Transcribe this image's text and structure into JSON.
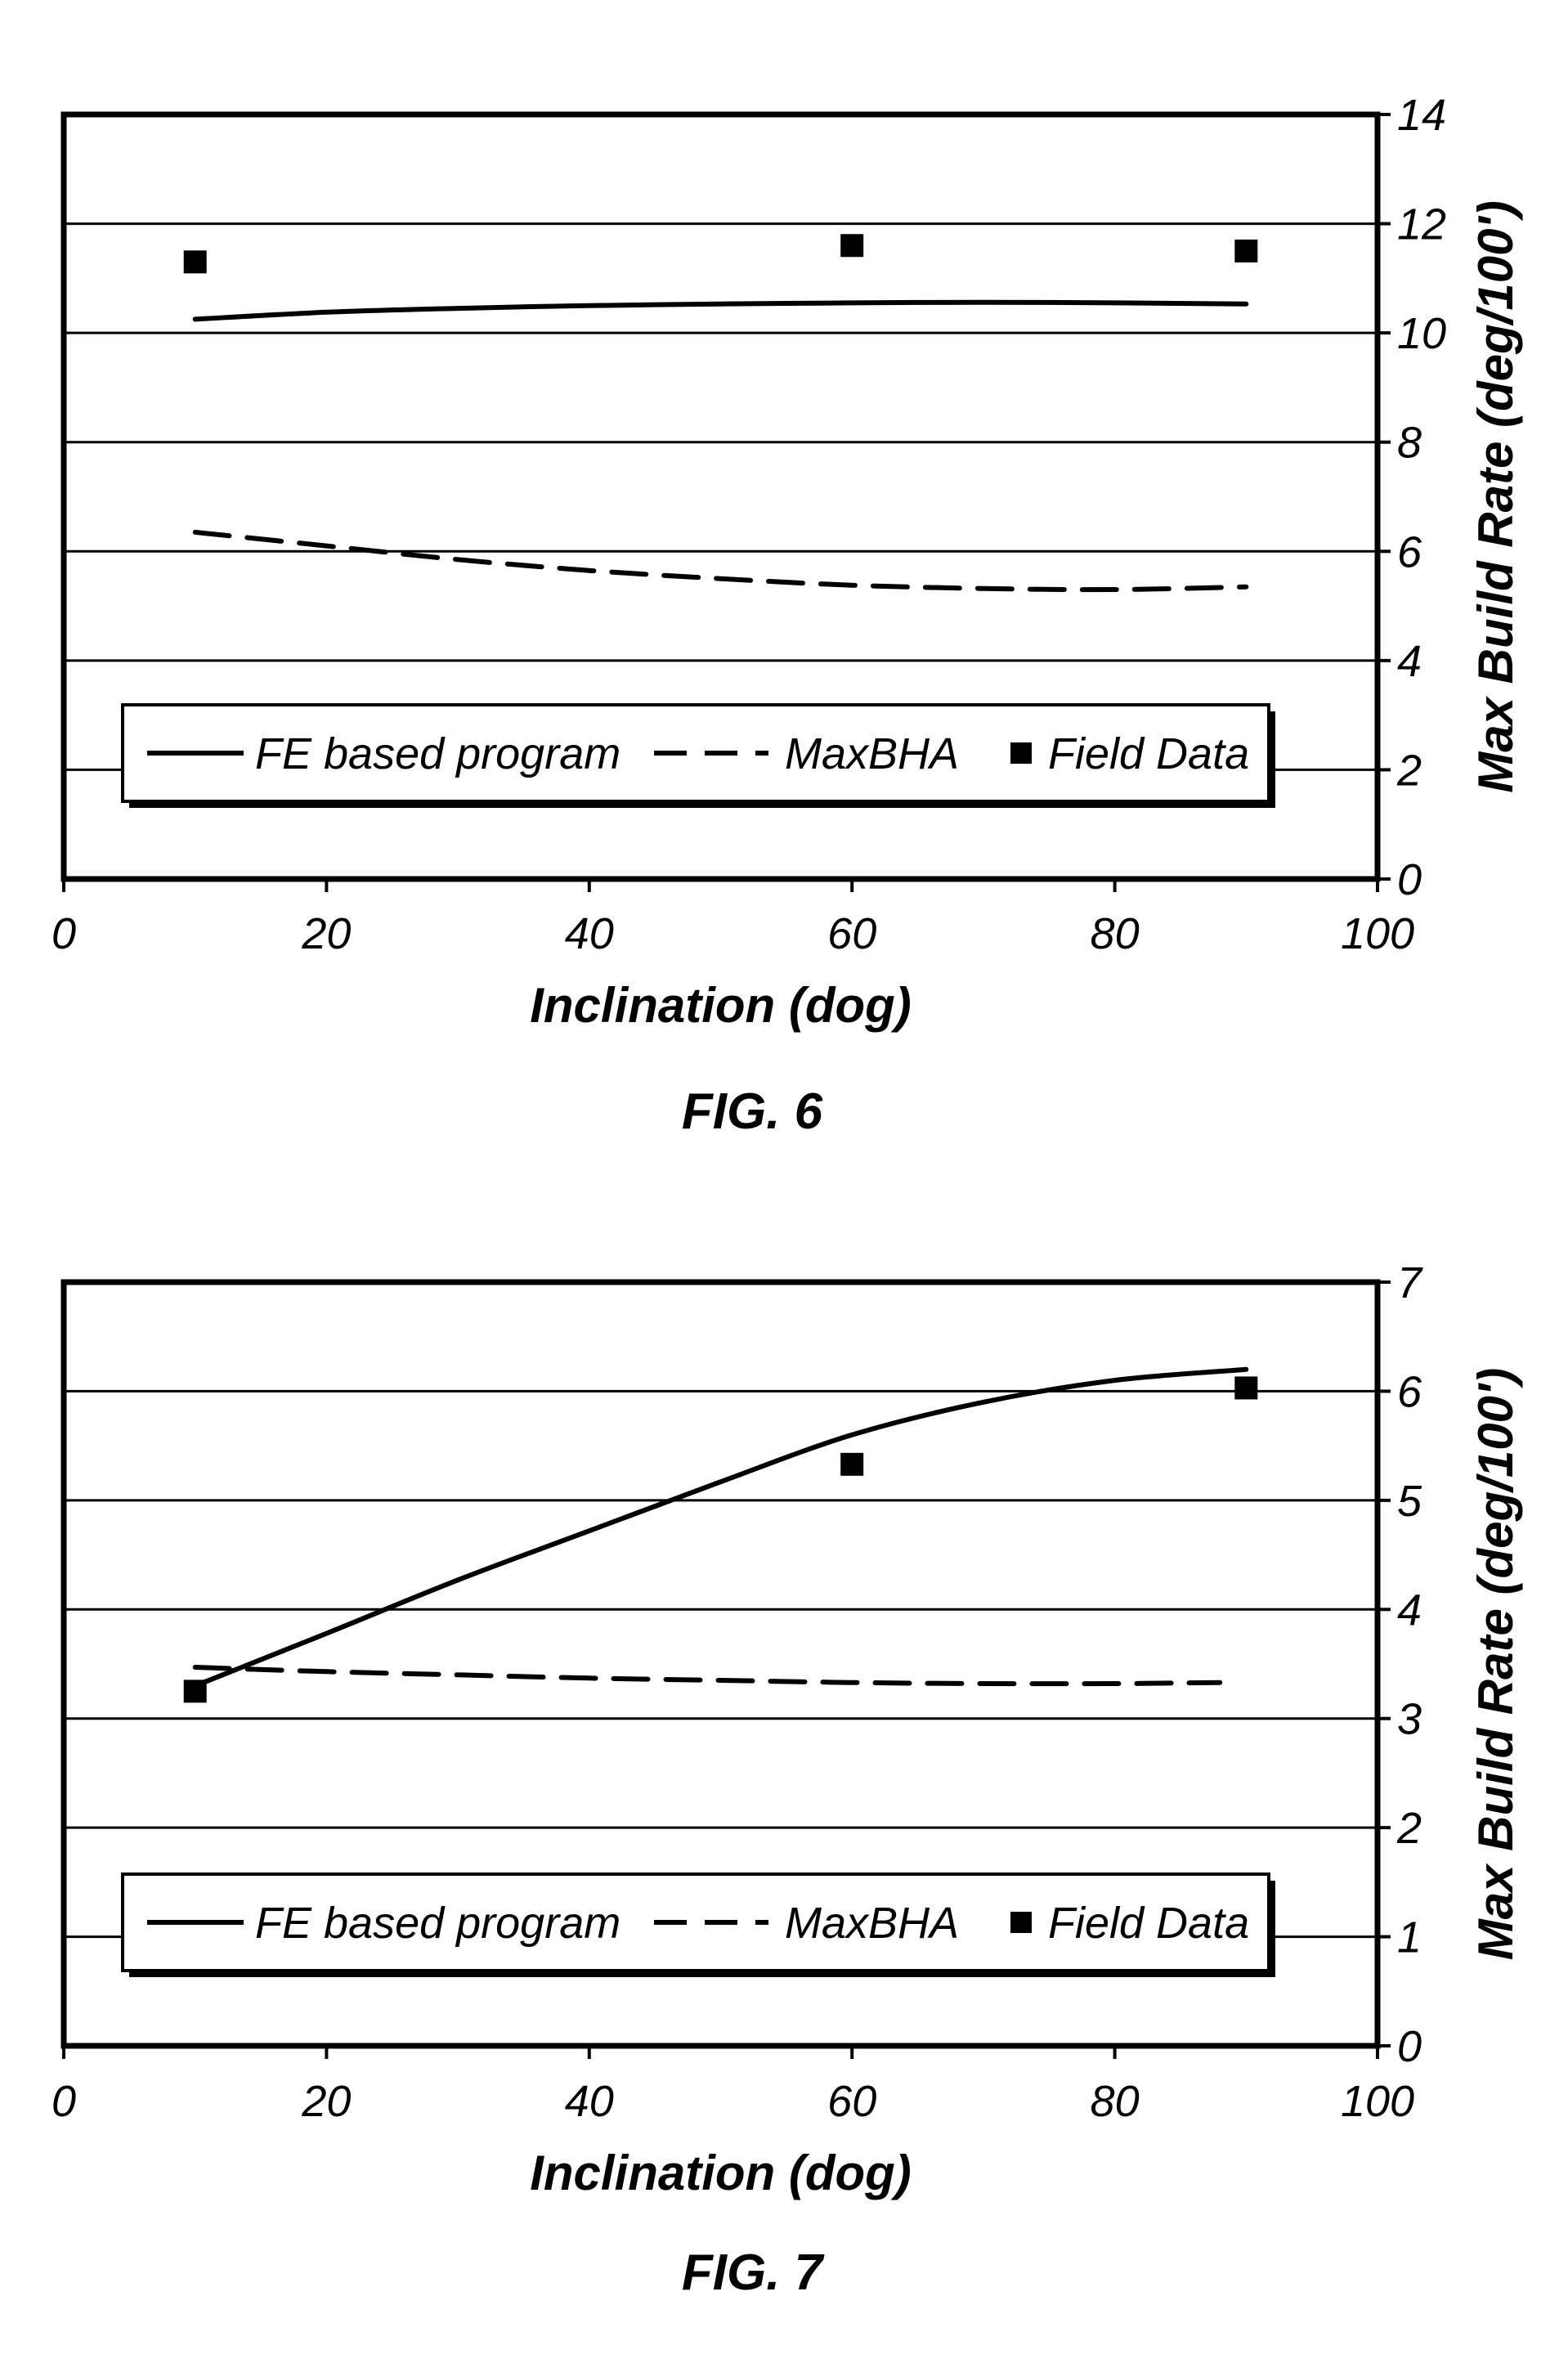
{
  "chart_data": [
    {
      "type": "line",
      "figure_label": "FIG. 6",
      "xlabel": "Inclination (dog)",
      "ylabel": "Max Build Rate (deg/100')",
      "xlim": [
        0,
        100
      ],
      "ylim": [
        0,
        14
      ],
      "xticks": [
        "0",
        "20",
        "40",
        "60",
        "80",
        "100"
      ],
      "yticks": [
        "0",
        "2",
        "4",
        "6",
        "8",
        "10",
        "12",
        "14"
      ],
      "y_axis_side": "right",
      "grid": "horizontal",
      "legend_placement": "bottom",
      "series": [
        {
          "name": "FE based program",
          "style": "solid",
          "x": [
            10,
            20,
            30,
            40,
            50,
            60,
            70,
            80,
            90
          ],
          "y": [
            10.25,
            10.38,
            10.45,
            10.5,
            10.53,
            10.55,
            10.56,
            10.55,
            10.53
          ]
        },
        {
          "name": "MaxBHA",
          "style": "dashed",
          "x": [
            10,
            20,
            30,
            40,
            50,
            60,
            70,
            80,
            90
          ],
          "y": [
            6.35,
            6.1,
            5.85,
            5.65,
            5.5,
            5.38,
            5.32,
            5.3,
            5.35
          ]
        },
        {
          "name": "Field Data",
          "style": "marker",
          "x": [
            10,
            60,
            90
          ],
          "y": [
            11.3,
            11.6,
            11.5
          ]
        }
      ]
    },
    {
      "type": "line",
      "figure_label": "FIG. 7",
      "xlabel": "Inclination (dog)",
      "ylabel": "Max Build Rate (deg/100')",
      "xlim": [
        0,
        100
      ],
      "ylim": [
        0,
        7
      ],
      "xticks": [
        "0",
        "20",
        "40",
        "60",
        "80",
        "100"
      ],
      "yticks": [
        "0",
        "1",
        "2",
        "3",
        "4",
        "5",
        "6",
        "7"
      ],
      "y_axis_side": "right",
      "grid": "horizontal",
      "legend_placement": "bottom",
      "series": [
        {
          "name": "FE based program",
          "style": "solid",
          "x": [
            10,
            20,
            30,
            40,
            50,
            60,
            70,
            80,
            90
          ],
          "y": [
            3.3,
            3.78,
            4.27,
            4.72,
            5.17,
            5.6,
            5.9,
            6.1,
            6.2
          ]
        },
        {
          "name": "MaxBHA",
          "style": "dashed",
          "x": [
            10,
            20,
            30,
            40,
            50,
            60,
            70,
            80,
            88
          ],
          "y": [
            3.47,
            3.43,
            3.4,
            3.37,
            3.35,
            3.33,
            3.32,
            3.32,
            3.33
          ]
        },
        {
          "name": "Field Data",
          "style": "marker",
          "x": [
            10,
            60,
            90
          ],
          "y": [
            3.25,
            5.33,
            6.03
          ]
        }
      ]
    }
  ]
}
